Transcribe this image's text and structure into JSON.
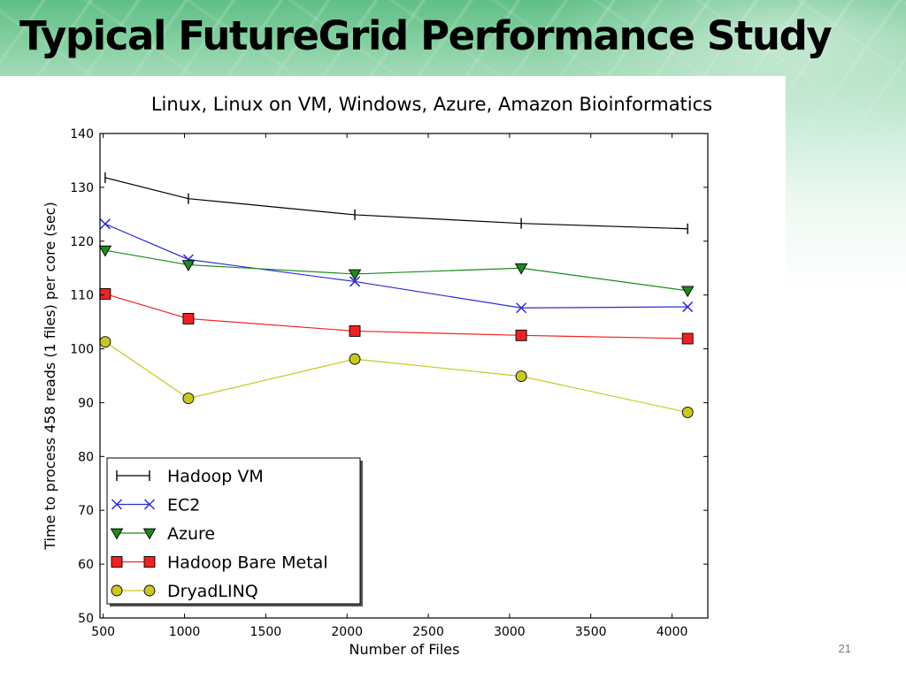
{
  "slide": {
    "title": "Typical FutureGrid Performance Study",
    "page_number": "21"
  },
  "chart_data": {
    "type": "line",
    "title": "Linux, Linux on VM, Windows, Azure, Amazon Bioinformatics",
    "xlabel": "Number of Files",
    "ylabel": "Time to process 458 reads (1 files) per core (sec)",
    "xlim": [
      480,
      4220
    ],
    "ylim": [
      50,
      140
    ],
    "xticks": [
      500,
      1000,
      1500,
      2000,
      2500,
      3000,
      3500,
      4000
    ],
    "yticks": [
      50,
      60,
      70,
      80,
      90,
      100,
      110,
      120,
      130,
      140
    ],
    "grid": false,
    "legend_position": "lower-left",
    "series": [
      {
        "name": "Hadoop VM",
        "color": "#000000",
        "marker": "vline",
        "x": [
          512,
          1024,
          2048,
          3072,
          4096
        ],
        "y": [
          131.8,
          127.9,
          124.9,
          123.3,
          122.3
        ]
      },
      {
        "name": "EC2",
        "color": "#2b2bd9",
        "marker": "x",
        "x": [
          512,
          1024,
          2048,
          3072,
          4096
        ],
        "y": [
          123.2,
          116.6,
          112.5,
          107.6,
          107.8
        ]
      },
      {
        "name": "Azure",
        "color": "#1e8a1e",
        "marker": "triangle-down",
        "x": [
          512,
          1024,
          2048,
          3072,
          4096
        ],
        "y": [
          118.3,
          115.6,
          113.9,
          115.0,
          110.8
        ]
      },
      {
        "name": "Hadoop Bare Metal",
        "color": "#ee2222",
        "marker": "square",
        "x": [
          512,
          1024,
          2048,
          3072,
          4096
        ],
        "y": [
          110.2,
          105.6,
          103.3,
          102.5,
          101.9
        ]
      },
      {
        "name": "DryadLINQ",
        "color": "#c8c820",
        "marker": "circle",
        "x": [
          512,
          1024,
          2048,
          3072,
          4096
        ],
        "y": [
          101.3,
          90.8,
          98.1,
          94.9,
          88.2
        ]
      }
    ]
  }
}
